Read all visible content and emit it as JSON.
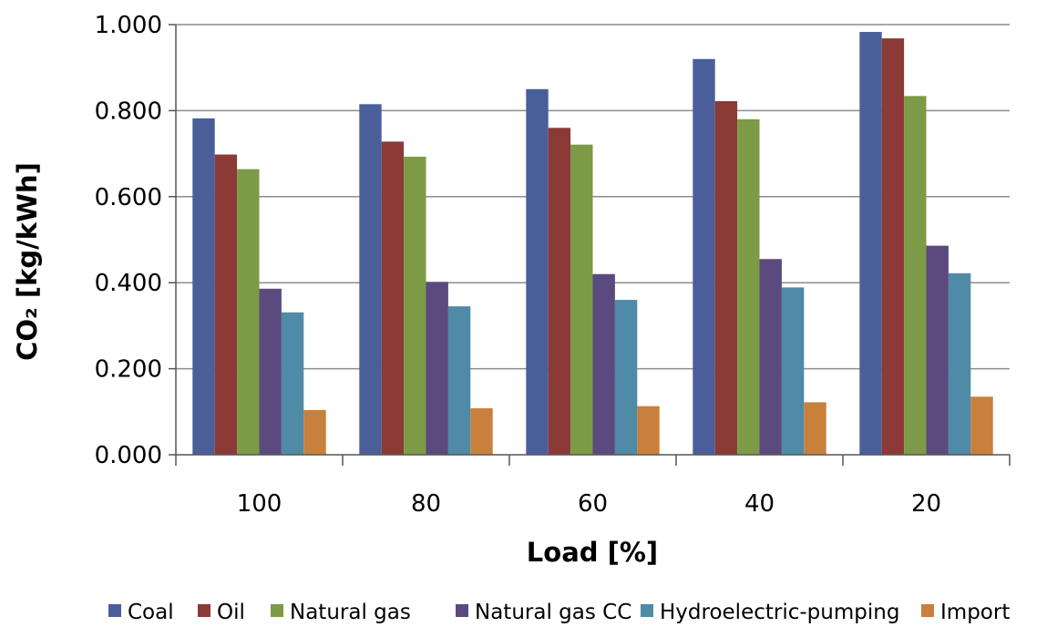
{
  "chart_data": {
    "type": "bar",
    "title": "",
    "xlabel": "Load [%]",
    "ylabel": "CO₂ [kg/kWh]",
    "ylim": [
      0,
      1.0
    ],
    "yticks": [
      "0.000",
      "0.200",
      "0.400",
      "0.600",
      "0.800",
      "1.000"
    ],
    "grid": true,
    "legend_position": "bottom",
    "categories": [
      "100",
      "80",
      "60",
      "40",
      "20"
    ],
    "series": [
      {
        "name": "Coal",
        "color": "#4a5f99",
        "values": [
          0.782,
          0.815,
          0.85,
          0.92,
          0.983
        ]
      },
      {
        "name": "Oil",
        "color": "#8b3a36",
        "values": [
          0.698,
          0.728,
          0.76,
          0.822,
          0.968
        ]
      },
      {
        "name": "Natural gas",
        "color": "#7d9a47",
        "values": [
          0.664,
          0.693,
          0.721,
          0.78,
          0.834
        ]
      },
      {
        "name": "Natural gas CC",
        "color": "#5b4a7d",
        "values": [
          0.386,
          0.402,
          0.42,
          0.455,
          0.486
        ]
      },
      {
        "name": "Hydroelectric-pumping",
        "color": "#4f8aa6",
        "values": [
          0.331,
          0.345,
          0.36,
          0.389,
          0.422
        ]
      },
      {
        "name": "Import",
        "color": "#c8803c",
        "values": [
          0.104,
          0.108,
          0.113,
          0.122,
          0.135
        ]
      }
    ]
  }
}
